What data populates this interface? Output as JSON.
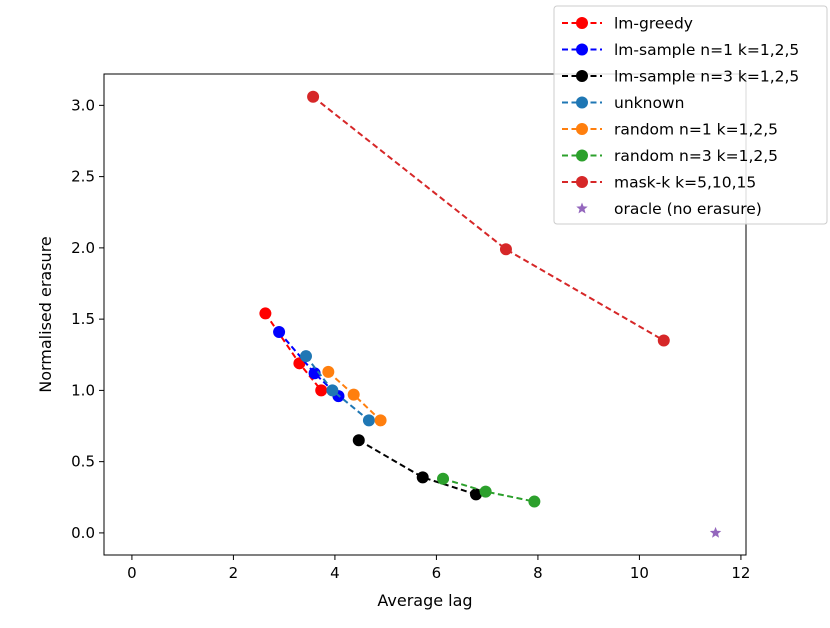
{
  "chart_data": {
    "type": "line",
    "title": "",
    "xlabel": "Average lag",
    "ylabel": "Normalised erasure",
    "xlim": [
      -0.55,
      12.1
    ],
    "ylim": [
      -0.155,
      3.22
    ],
    "xticks": [
      0,
      2,
      4,
      6,
      8,
      10,
      12
    ],
    "yticks": [
      0.0,
      0.5,
      1.0,
      1.5,
      2.0,
      2.5,
      3.0
    ],
    "xtick_labels": [
      "0",
      "2",
      "4",
      "6",
      "8",
      "10",
      "12"
    ],
    "ytick_labels": [
      "0.0",
      "0.5",
      "1.0",
      "1.5",
      "2.0",
      "2.5",
      "3.0"
    ],
    "grid": false,
    "legend_position": "upper-right",
    "series": [
      {
        "name": "lm-greedy",
        "color": "#ff0000",
        "marker": "circle",
        "line": "dashed",
        "x": [
          2.63,
          3.3,
          3.73
        ],
        "y": [
          1.54,
          1.19,
          1.0
        ]
      },
      {
        "name": "lm-sample n=1 k=1,2,5",
        "color": "#0000ff",
        "marker": "circle",
        "line": "dashed",
        "x": [
          2.9,
          3.6,
          4.07
        ],
        "y": [
          1.41,
          1.12,
          0.96
        ]
      },
      {
        "name": "lm-sample n=3 k=1,2,5",
        "color": "#000000",
        "marker": "circle",
        "line": "dashed",
        "x": [
          4.47,
          5.73,
          6.78
        ],
        "y": [
          0.65,
          0.39,
          0.27
        ]
      },
      {
        "name": "unknown",
        "color": "#1f77b4",
        "marker": "circle",
        "line": "dashed",
        "x": [
          3.43,
          3.95,
          4.67
        ],
        "y": [
          1.24,
          1.0,
          0.79
        ]
      },
      {
        "name": "random n=1 k=1,2,5",
        "color": "#ff7f0e",
        "marker": "circle",
        "line": "dashed",
        "x": [
          3.87,
          4.37,
          4.9
        ],
        "y": [
          1.13,
          0.97,
          0.79
        ]
      },
      {
        "name": "random n=3 k=1,2,5",
        "color": "#2ca02c",
        "marker": "circle",
        "line": "dashed",
        "x": [
          6.13,
          6.97,
          7.93
        ],
        "y": [
          0.38,
          0.29,
          0.22
        ]
      },
      {
        "name": "mask-k k=5,10,15",
        "color": "#d62728",
        "marker": "circle",
        "line": "dashed",
        "x": [
          3.57,
          7.37,
          10.48
        ],
        "y": [
          3.06,
          1.99,
          1.35
        ]
      },
      {
        "name": "oracle (no erasure)",
        "color": "#9467bd",
        "marker": "star",
        "line": "none",
        "x": [
          11.5
        ],
        "y": [
          0.0
        ]
      }
    ]
  }
}
